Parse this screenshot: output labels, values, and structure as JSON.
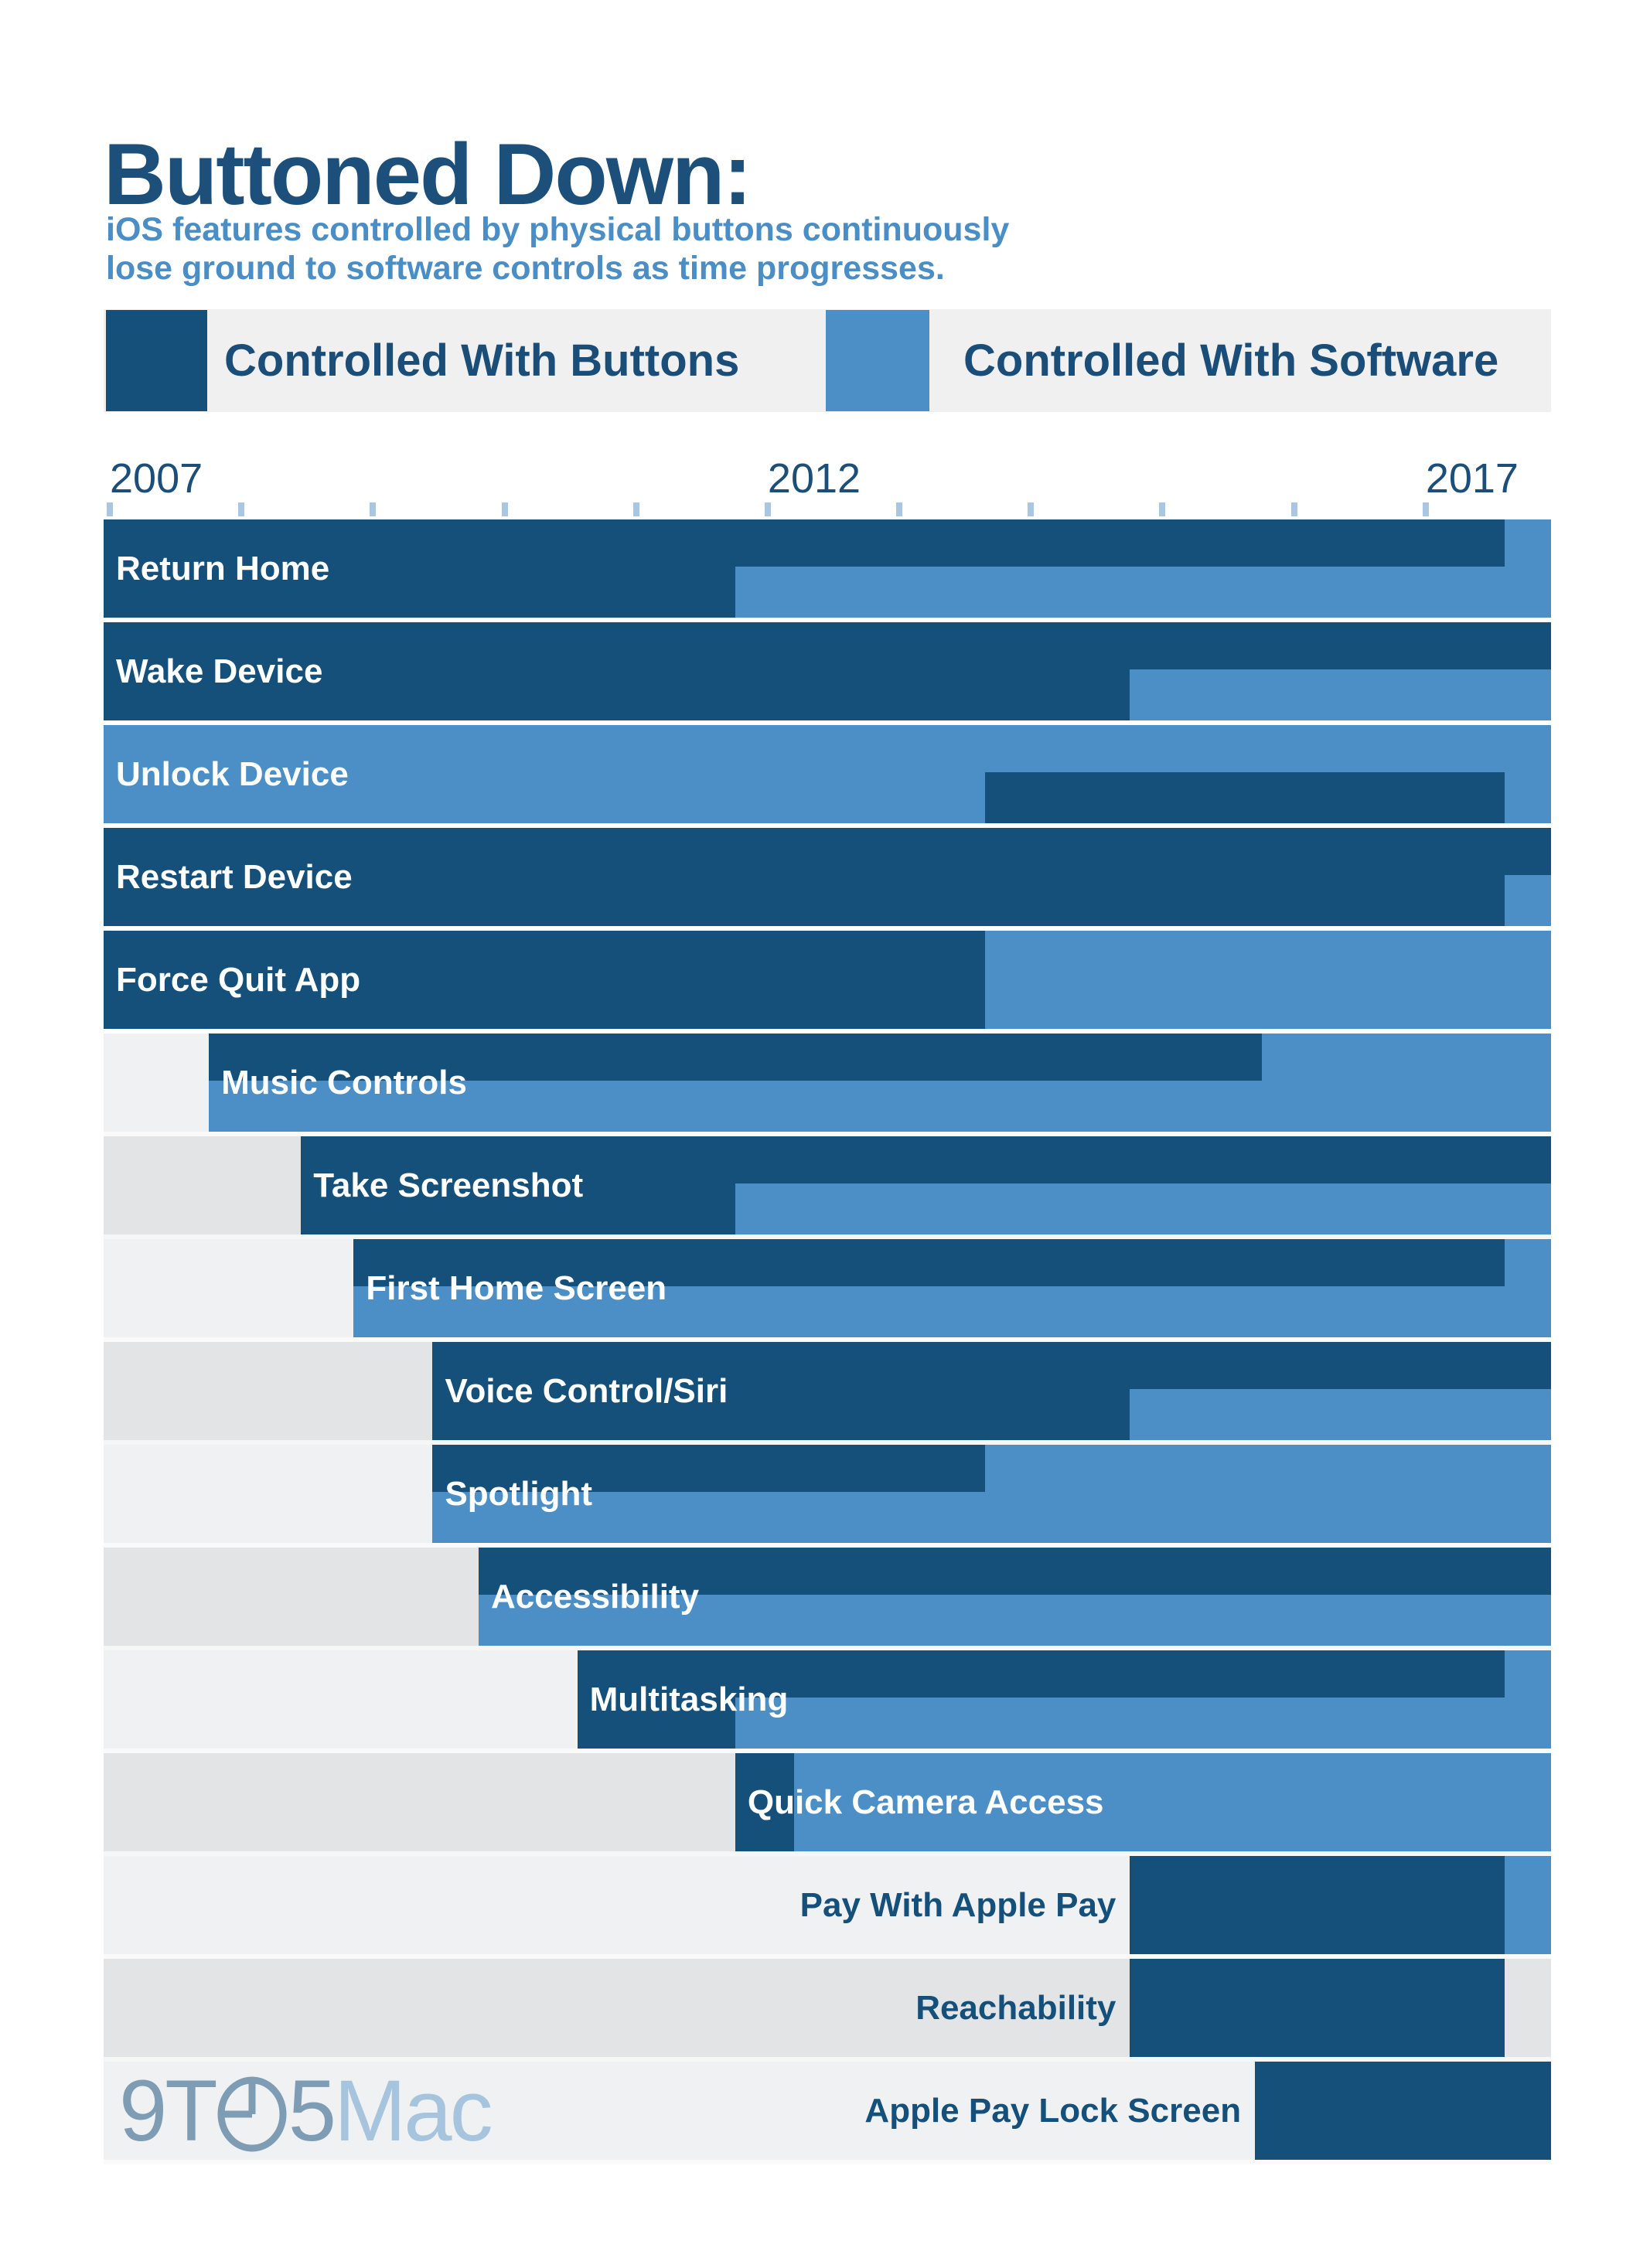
{
  "title": {
    "text": "Buttoned Down:",
    "subtitle_line1": "iOS features controlled by physical buttons continuously",
    "subtitle_line2": "lose ground to software controls as time progresses."
  },
  "legend": {
    "items": [
      {
        "label": "Controlled With Buttons",
        "key": "btn"
      },
      {
        "label": "Controlled With Software",
        "key": "sw"
      }
    ]
  },
  "colors": {
    "button": "#15507B",
    "software": "#4C8FC6",
    "title": "#1C4F7A",
    "subtitle": "#4B8EC5",
    "legend_background": "#F0F0F1",
    "row_gray_light": "#F0F1F2",
    "row_gray_dark": "#E2E4E5",
    "tick": "#A9C6E2",
    "logo_slate": "#7E9CB4",
    "logo_light_blue": "#A6C4DD",
    "page_background": "#FFFFFF"
  },
  "logo": {
    "name": "9to5mac-logo",
    "part1": "9T",
    "part2": "5",
    "part3": "Mac"
  },
  "chart_data": {
    "type": "gantt",
    "description": "Timeline per iOS feature; each row has a top half-band (physical button control) and a bottom half-band (software control). Dark blue = controlled with buttons, light blue = controlled with software, gray = feature not present.",
    "x_axis": {
      "range": [
        2007,
        2018
      ],
      "tick_years": [
        2007,
        2008,
        2009,
        2010,
        2011,
        2012,
        2013,
        2014,
        2015,
        2016,
        2017
      ],
      "labeled_ticks": [
        {
          "year": 2007,
          "text": "2007"
        },
        {
          "year": 2012,
          "text": "2012"
        },
        {
          "year": 2017,
          "text": "2017"
        }
      ]
    },
    "legend_position": "top",
    "grid": false,
    "rows": [
      {
        "label": "Return Home",
        "start": 2007,
        "label_placement": "inside",
        "bg": null,
        "top": [
          [
            "btn",
            2007,
            2017.65
          ],
          [
            "sw",
            2017.65,
            2018
          ]
        ],
        "bottom": [
          [
            "btn",
            2007,
            2011.8
          ],
          [
            "sw",
            2011.8,
            2018
          ]
        ]
      },
      {
        "label": "Wake Device",
        "start": 2007,
        "label_placement": "inside",
        "bg": null,
        "top": [
          [
            "btn",
            2007,
            2018
          ]
        ],
        "bottom": [
          [
            "btn",
            2007,
            2014.8
          ],
          [
            "sw",
            2014.8,
            2018
          ]
        ]
      },
      {
        "label": "Unlock Device",
        "start": 2007,
        "label_placement": "inside",
        "bg": null,
        "top": [
          [
            "sw",
            2007,
            2018
          ]
        ],
        "bottom": [
          [
            "sw",
            2007,
            2013.7
          ],
          [
            "btn",
            2013.7,
            2017.65
          ],
          [
            "sw",
            2017.65,
            2018
          ]
        ]
      },
      {
        "label": "Restart Device",
        "start": 2007,
        "label_placement": "inside",
        "bg": null,
        "top": [
          [
            "btn",
            2007,
            2018
          ]
        ],
        "bottom": [
          [
            "btn",
            2007,
            2017.65
          ],
          [
            "sw",
            2017.65,
            2018
          ]
        ]
      },
      {
        "label": "Force Quit App",
        "start": 2007,
        "label_placement": "inside",
        "bg": null,
        "top": [
          [
            "btn",
            2007,
            2013.7
          ],
          [
            "sw",
            2013.7,
            2018
          ]
        ],
        "bottom": [
          [
            "btn",
            2007,
            2013.7
          ],
          [
            "sw",
            2013.7,
            2018
          ]
        ]
      },
      {
        "label": "Music Controls",
        "start": 2007.8,
        "label_placement": "inside",
        "bg": "light",
        "top": [
          [
            "btn",
            2007.8,
            2015.8
          ],
          [
            "sw",
            2015.8,
            2018
          ]
        ],
        "bottom": [
          [
            "sw",
            2007.8,
            2018
          ]
        ]
      },
      {
        "label": "Take Screenshot",
        "start": 2008.5,
        "label_placement": "inside",
        "bg": "dark",
        "top": [
          [
            "btn",
            2008.5,
            2018
          ]
        ],
        "bottom": [
          [
            "btn",
            2008.5,
            2011.8
          ],
          [
            "sw",
            2011.8,
            2018
          ]
        ]
      },
      {
        "label": "First Home Screen",
        "start": 2008.9,
        "label_placement": "inside",
        "bg": "light",
        "top": [
          [
            "btn",
            2008.9,
            2017.65
          ],
          [
            "sw",
            2017.65,
            2018
          ]
        ],
        "bottom": [
          [
            "sw",
            2008.9,
            2018
          ]
        ]
      },
      {
        "label": "Voice Control/Siri",
        "start": 2009.5,
        "label_placement": "inside",
        "bg": "dark",
        "top": [
          [
            "btn",
            2009.5,
            2018
          ]
        ],
        "bottom": [
          [
            "btn",
            2009.5,
            2014.8
          ],
          [
            "sw",
            2014.8,
            2018
          ]
        ]
      },
      {
        "label": "Spotlight",
        "start": 2009.5,
        "label_placement": "inside",
        "bg": "light",
        "top": [
          [
            "btn",
            2009.5,
            2013.7
          ],
          [
            "sw",
            2013.7,
            2018
          ]
        ],
        "bottom": [
          [
            "sw",
            2009.5,
            2018
          ]
        ]
      },
      {
        "label": "Accessibility",
        "start": 2009.85,
        "label_placement": "inside",
        "bg": "dark",
        "top": [
          [
            "btn",
            2009.85,
            2018
          ]
        ],
        "bottom": [
          [
            "sw",
            2009.85,
            2018
          ]
        ]
      },
      {
        "label": "Multitasking",
        "start": 2010.6,
        "label_placement": "inside",
        "bg": "light",
        "top": [
          [
            "btn",
            2010.6,
            2017.65
          ],
          [
            "sw",
            2017.65,
            2018
          ]
        ],
        "bottom": [
          [
            "btn",
            2010.6,
            2011.8
          ],
          [
            "sw",
            2011.8,
            2018
          ]
        ]
      },
      {
        "label": "Quick Camera Access",
        "start": 2011.8,
        "label_placement": "inside",
        "bg": "dark",
        "top": [
          [
            "btn",
            2011.8,
            2012.25
          ],
          [
            "sw",
            2012.25,
            2018
          ]
        ],
        "bottom": [
          [
            "btn",
            2011.8,
            2012.25
          ],
          [
            "sw",
            2012.25,
            2018
          ]
        ]
      },
      {
        "label": "Pay With Apple Pay",
        "start": 2014.8,
        "label_placement": "outside",
        "bg": "light",
        "top": [
          [
            "btn",
            2014.8,
            2017.65
          ],
          [
            "sw",
            2017.65,
            2018
          ]
        ],
        "bottom": [
          [
            "btn",
            2014.8,
            2017.65
          ],
          [
            "sw",
            2017.65,
            2018
          ]
        ]
      },
      {
        "label": "Reachability",
        "start": 2014.8,
        "label_placement": "outside",
        "bg": "dark",
        "top": [
          [
            "btn",
            2014.8,
            2017.65
          ]
        ],
        "bottom": [
          [
            "btn",
            2014.8,
            2017.65
          ]
        ]
      },
      {
        "label": "Apple Pay Lock Screen",
        "start": 2015.75,
        "label_placement": "outside",
        "bg": "light",
        "top": [
          [
            "btn",
            2015.75,
            2018
          ]
        ],
        "bottom": [
          [
            "btn",
            2015.75,
            2018
          ]
        ]
      }
    ]
  }
}
